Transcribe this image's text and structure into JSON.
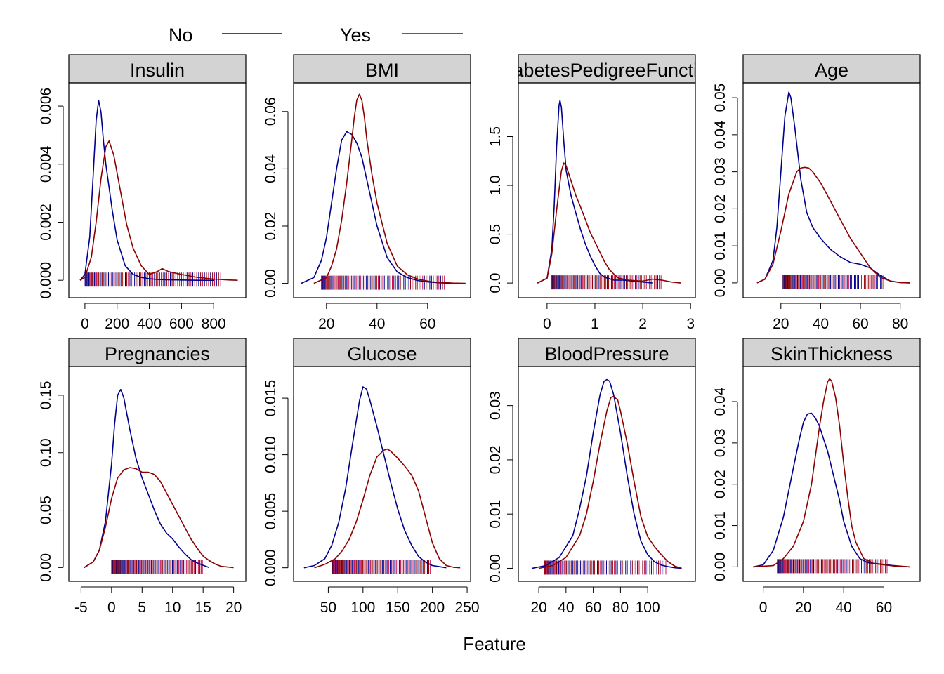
{
  "colors": {
    "No": "#00008B",
    "Yes": "#8B0000",
    "strip_bg": "#D3D3D3",
    "rug_mix": "#C2185B"
  },
  "legend": {
    "entries": [
      {
        "label": "No",
        "color": "#00008B"
      },
      {
        "label": "Yes",
        "color": "#8B0000"
      }
    ]
  },
  "xlabel": "Feature",
  "chart_data": [
    {
      "type": "line",
      "title": "Insulin",
      "xlim": [
        -100,
        1000
      ],
      "ylim": [
        -0.0006,
        0.0068
      ],
      "xticks": [
        0,
        200,
        400,
        600,
        800
      ],
      "xtick_labels": [
        "0",
        "200",
        "400",
        "600",
        "800"
      ],
      "yticks": [
        0,
        0.002,
        0.004,
        0.006
      ],
      "ytick_labels": [
        "0.000",
        "0.002",
        "0.004",
        "0.006"
      ],
      "rug_range": [
        0,
        850
      ],
      "series": [
        {
          "name": "No",
          "x": [
            -30,
            0,
            30,
            50,
            70,
            85,
            100,
            115,
            130,
            150,
            170,
            200,
            250,
            300,
            350,
            400,
            450,
            500,
            600,
            700,
            800
          ],
          "y": [
            0,
            0.0002,
            0.0015,
            0.0035,
            0.0055,
            0.0062,
            0.0058,
            0.0048,
            0.004,
            0.0032,
            0.0024,
            0.0014,
            0.0005,
            0.0002,
            0.0001,
            5e-05,
            3e-05,
            2e-05,
            1e-05,
            0,
            0
          ]
        },
        {
          "name": "Yes",
          "x": [
            -30,
            0,
            40,
            70,
            100,
            130,
            150,
            180,
            220,
            260,
            300,
            350,
            400,
            450,
            480,
            520,
            600,
            700,
            800,
            900,
            950
          ],
          "y": [
            0,
            0.0001,
            0.0008,
            0.002,
            0.0035,
            0.0046,
            0.0048,
            0.0043,
            0.0031,
            0.0019,
            0.0011,
            0.0005,
            0.0002,
            0.0003,
            0.0004,
            0.0003,
            0.0002,
            0.0001,
            4e-05,
            1e-05,
            0
          ]
        }
      ]
    },
    {
      "type": "line",
      "title": "BMI",
      "xlim": [
        7,
        77
      ],
      "ylim": [
        -0.005,
        0.07
      ],
      "xticks": [
        20,
        40,
        60
      ],
      "xtick_labels": [
        "20",
        "40",
        "60"
      ],
      "yticks": [
        0,
        0.02,
        0.04,
        0.06
      ],
      "ytick_labels": [
        "0.00",
        "0.02",
        "0.04",
        "0.06"
      ],
      "rug_range": [
        18,
        67
      ],
      "series": [
        {
          "name": "No",
          "x": [
            10,
            15,
            18,
            20,
            22,
            24,
            26,
            28,
            30,
            32,
            34,
            36,
            38,
            40,
            44,
            48,
            52,
            56,
            60,
            65,
            70
          ],
          "y": [
            0,
            0.002,
            0.008,
            0.016,
            0.028,
            0.04,
            0.05,
            0.053,
            0.052,
            0.049,
            0.044,
            0.036,
            0.028,
            0.02,
            0.009,
            0.004,
            0.002,
            0.001,
            0.0005,
            0.0002,
            0
          ]
        },
        {
          "name": "Yes",
          "x": [
            15,
            20,
            22,
            24,
            26,
            28,
            30,
            31,
            32,
            33,
            34,
            35,
            36,
            38,
            40,
            44,
            48,
            52,
            56,
            62,
            70,
            75
          ],
          "y": [
            0,
            0.002,
            0.006,
            0.012,
            0.022,
            0.035,
            0.05,
            0.058,
            0.064,
            0.066,
            0.064,
            0.058,
            0.05,
            0.038,
            0.028,
            0.014,
            0.006,
            0.003,
            0.0015,
            0.0005,
            0.0001,
            0
          ]
        }
      ]
    },
    {
      "type": "line",
      "title": "DiabetesPedigreeFunction",
      "xlim": [
        -0.6,
        3.1
      ],
      "ylim": [
        -0.15,
        2.05
      ],
      "xticks": [
        0,
        1,
        2,
        3
      ],
      "xtick_labels": [
        "0",
        "1",
        "2",
        "3"
      ],
      "yticks": [
        0,
        0.5,
        1.0,
        1.5
      ],
      "ytick_labels": [
        "0.0",
        "0.5",
        "1.0",
        "1.5"
      ],
      "rug_range": [
        0.08,
        2.4
      ],
      "series": [
        {
          "name": "No",
          "x": [
            -0.2,
            0,
            0.1,
            0.15,
            0.2,
            0.25,
            0.27,
            0.3,
            0.35,
            0.4,
            0.5,
            0.6,
            0.7,
            0.8,
            0.9,
            1.0,
            1.1,
            1.2,
            1.4,
            1.6,
            1.8,
            2.0,
            2.2
          ],
          "y": [
            0,
            0.05,
            0.35,
            0.8,
            1.4,
            1.82,
            1.87,
            1.8,
            1.45,
            1.15,
            0.9,
            0.72,
            0.55,
            0.4,
            0.28,
            0.18,
            0.1,
            0.06,
            0.03,
            0.03,
            0.02,
            0.01,
            0
          ]
        },
        {
          "name": "Yes",
          "x": [
            -0.2,
            0,
            0.1,
            0.2,
            0.3,
            0.35,
            0.4,
            0.5,
            0.6,
            0.7,
            0.8,
            0.9,
            1.0,
            1.1,
            1.2,
            1.3,
            1.4,
            1.5,
            1.7,
            2.0,
            2.2,
            2.4,
            2.6,
            2.8
          ],
          "y": [
            0,
            0.05,
            0.3,
            0.75,
            1.15,
            1.23,
            1.2,
            1.05,
            0.9,
            0.78,
            0.65,
            0.52,
            0.42,
            0.32,
            0.22,
            0.14,
            0.09,
            0.05,
            0.03,
            0.02,
            0.04,
            0.03,
            0.01,
            0
          ]
        }
      ]
    },
    {
      "type": "line",
      "title": "Age",
      "xlim": [
        1,
        90
      ],
      "ylim": [
        -0.004,
        0.054
      ],
      "xticks": [
        20,
        40,
        60,
        80
      ],
      "xtick_labels": [
        "20",
        "40",
        "60",
        "80"
      ],
      "yticks": [
        0,
        0.01,
        0.02,
        0.03,
        0.04,
        0.05
      ],
      "ytick_labels": [
        "0.00",
        "0.01",
        "0.02",
        "0.03",
        "0.04",
        "0.05"
      ],
      "rug_range": [
        21,
        72
      ],
      "series": [
        {
          "name": "No",
          "x": [
            8,
            12,
            16,
            18,
            20,
            22,
            24,
            25,
            27,
            30,
            33,
            36,
            40,
            45,
            50,
            55,
            60,
            65,
            70,
            75,
            80,
            85
          ],
          "y": [
            0,
            0.001,
            0.006,
            0.015,
            0.03,
            0.045,
            0.0515,
            0.05,
            0.042,
            0.028,
            0.019,
            0.015,
            0.012,
            0.009,
            0.007,
            0.0055,
            0.005,
            0.004,
            0.002,
            0.0005,
            0.0001,
            0
          ]
        },
        {
          "name": "Yes",
          "x": [
            8,
            12,
            16,
            20,
            24,
            28,
            30,
            32,
            34,
            36,
            40,
            45,
            50,
            55,
            60,
            65,
            70,
            75,
            80,
            85
          ],
          "y": [
            0,
            0.001,
            0.005,
            0.014,
            0.024,
            0.03,
            0.031,
            0.0312,
            0.031,
            0.03,
            0.027,
            0.022,
            0.017,
            0.012,
            0.008,
            0.004,
            0.0015,
            0.0005,
            0.0001,
            0
          ]
        }
      ]
    },
    {
      "type": "line",
      "title": "Pregnancies",
      "xlim": [
        -7,
        22
      ],
      "ylim": [
        -0.012,
        0.175
      ],
      "xticks": [
        -5,
        0,
        5,
        10,
        15,
        20
      ],
      "xtick_labels": [
        "-5",
        "0",
        "5",
        "10",
        "15",
        "20"
      ],
      "yticks": [
        0,
        0.05,
        0.1,
        0.15
      ],
      "ytick_labels": [
        "0.00",
        "0.05",
        "0.10",
        "0.15"
      ],
      "rug_range": [
        0,
        15
      ],
      "series": [
        {
          "name": "No",
          "x": [
            -4.5,
            -3,
            -2,
            -1,
            0,
            0.5,
            1,
            1.5,
            2,
            3,
            4,
            5,
            6,
            7,
            8,
            9,
            10,
            11,
            12,
            13,
            14,
            15,
            16
          ],
          "y": [
            0,
            0.005,
            0.015,
            0.04,
            0.09,
            0.125,
            0.15,
            0.155,
            0.148,
            0.12,
            0.095,
            0.078,
            0.064,
            0.05,
            0.038,
            0.03,
            0.025,
            0.018,
            0.012,
            0.007,
            0.004,
            0.002,
            0
          ]
        },
        {
          "name": "Yes",
          "x": [
            -4.5,
            -3,
            -2,
            -1,
            0,
            1,
            2,
            3,
            4,
            5,
            6,
            7,
            8,
            9,
            10,
            11,
            12,
            13,
            14,
            15,
            16,
            17,
            18,
            20
          ],
          "y": [
            0,
            0.005,
            0.015,
            0.035,
            0.06,
            0.078,
            0.085,
            0.087,
            0.086,
            0.083,
            0.083,
            0.081,
            0.075,
            0.065,
            0.055,
            0.045,
            0.035,
            0.025,
            0.017,
            0.01,
            0.006,
            0.003,
            0.001,
            0
          ]
        }
      ]
    },
    {
      "type": "line",
      "title": "Glucose",
      "xlim": [
        0,
        255
      ],
      "ylim": [
        -0.0012,
        0.0178
      ],
      "xticks": [
        50,
        100,
        150,
        200,
        250
      ],
      "xtick_labels": [
        "50",
        "100",
        "150",
        "200",
        "250"
      ],
      "yticks": [
        0,
        0.005,
        0.01,
        0.015
      ],
      "ytick_labels": [
        "0.000",
        "0.005",
        "0.010",
        "0.015"
      ],
      "rug_range": [
        56,
        198
      ],
      "series": [
        {
          "name": "No",
          "x": [
            15,
            30,
            45,
            55,
            65,
            75,
            85,
            95,
            100,
            105,
            110,
            120,
            130,
            140,
            150,
            160,
            170,
            180,
            190,
            200,
            210,
            220
          ],
          "y": [
            0,
            0.0002,
            0.0008,
            0.002,
            0.004,
            0.007,
            0.011,
            0.0148,
            0.016,
            0.0158,
            0.0148,
            0.0125,
            0.01,
            0.0075,
            0.0052,
            0.0033,
            0.002,
            0.001,
            0.0005,
            0.0002,
            0.0001,
            0
          ]
        },
        {
          "name": "Yes",
          "x": [
            30,
            45,
            60,
            70,
            80,
            90,
            100,
            110,
            120,
            130,
            135,
            140,
            150,
            160,
            170,
            180,
            190,
            200,
            210,
            220,
            230,
            240
          ],
          "y": [
            0,
            0.0003,
            0.0008,
            0.0015,
            0.0025,
            0.004,
            0.006,
            0.0082,
            0.0098,
            0.0104,
            0.0105,
            0.0103,
            0.0097,
            0.009,
            0.0082,
            0.0068,
            0.0045,
            0.0022,
            0.0008,
            0.0002,
            5e-05,
            0
          ]
        }
      ]
    },
    {
      "type": "line",
      "title": "BloodPressure",
      "xlim": [
        5,
        135
      ],
      "ylim": [
        -0.0024,
        0.0372
      ],
      "xticks": [
        20,
        40,
        60,
        80,
        100
      ],
      "xtick_labels": [
        "20",
        "40",
        "60",
        "80",
        "100"
      ],
      "yticks": [
        0,
        0.01,
        0.02,
        0.03
      ],
      "ytick_labels": [
        "0.00",
        "0.01",
        "0.02",
        "0.03"
      ],
      "rug_range": [
        24,
        114
      ],
      "series": [
        {
          "name": "No",
          "x": [
            15,
            25,
            35,
            45,
            50,
            55,
            60,
            65,
            68,
            70,
            72,
            75,
            80,
            85,
            90,
            95,
            100,
            105,
            110,
            115,
            120,
            125
          ],
          "y": [
            0,
            0.0005,
            0.002,
            0.006,
            0.011,
            0.017,
            0.025,
            0.032,
            0.0345,
            0.0348,
            0.0345,
            0.032,
            0.025,
            0.017,
            0.01,
            0.005,
            0.0025,
            0.0012,
            0.0006,
            0.0003,
            0.0001,
            0
          ]
        },
        {
          "name": "Yes",
          "x": [
            20,
            30,
            40,
            50,
            55,
            60,
            65,
            70,
            73,
            75,
            78,
            80,
            85,
            90,
            95,
            100,
            105,
            110,
            115,
            120,
            125
          ],
          "y": [
            0,
            0.0005,
            0.002,
            0.006,
            0.01,
            0.016,
            0.023,
            0.029,
            0.0315,
            0.0317,
            0.031,
            0.029,
            0.023,
            0.016,
            0.0095,
            0.0058,
            0.004,
            0.0025,
            0.0012,
            0.0004,
            0
          ]
        }
      ]
    },
    {
      "type": "line",
      "title": "SkinThickness",
      "xlim": [
        -10,
        78
      ],
      "ylim": [
        -0.0035,
        0.0485
      ],
      "xticks": [
        0,
        20,
        40,
        60
      ],
      "xtick_labels": [
        "0",
        "20",
        "40",
        "60"
      ],
      "yticks": [
        0,
        0.01,
        0.02,
        0.03,
        0.04
      ],
      "ytick_labels": [
        "0.00",
        "0.01",
        "0.02",
        "0.03",
        "0.04"
      ],
      "rug_range": [
        7,
        62
      ],
      "series": [
        {
          "name": "No",
          "x": [
            -5,
            0,
            5,
            10,
            15,
            18,
            20,
            22,
            24,
            26,
            28,
            30,
            32,
            35,
            38,
            40,
            44,
            48,
            52,
            56,
            60,
            65,
            70,
            73
          ],
          "y": [
            0,
            0.0005,
            0.004,
            0.012,
            0.024,
            0.031,
            0.035,
            0.037,
            0.0372,
            0.036,
            0.034,
            0.031,
            0.028,
            0.022,
            0.016,
            0.011,
            0.005,
            0.002,
            0.001,
            0.0008,
            0.0006,
            0.0003,
            0.0001,
            0
          ]
        },
        {
          "name": "Yes",
          "x": [
            -5,
            5,
            10,
            15,
            20,
            24,
            26,
            28,
            30,
            32,
            33,
            34,
            36,
            38,
            40,
            42,
            44,
            46,
            50,
            55,
            60,
            65,
            70,
            73
          ],
          "y": [
            0,
            0.0003,
            0.002,
            0.005,
            0.011,
            0.02,
            0.027,
            0.034,
            0.04,
            0.0448,
            0.0455,
            0.045,
            0.041,
            0.034,
            0.025,
            0.017,
            0.01,
            0.006,
            0.002,
            0.0008,
            0.0005,
            0.0002,
            0.0001,
            0
          ]
        }
      ]
    }
  ]
}
